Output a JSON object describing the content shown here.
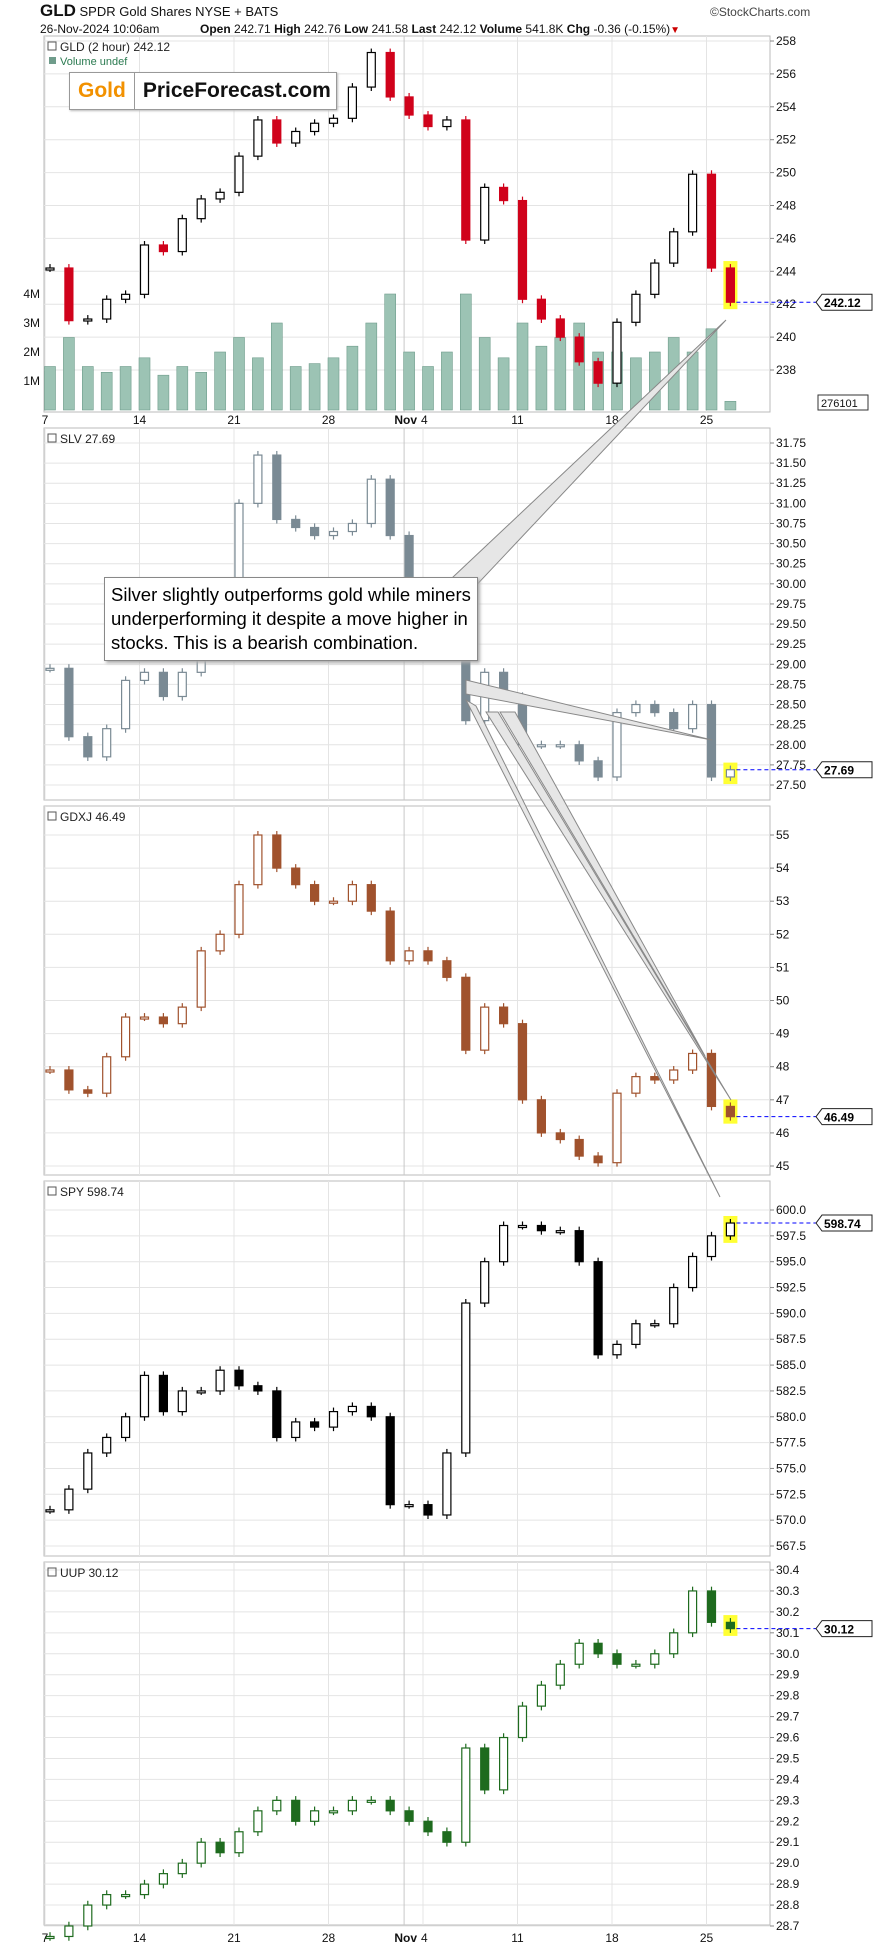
{
  "header": {
    "symbol": "GLD",
    "name": "SPDR Gold Shares NYSE + BATS",
    "copyright": "©StockCharts.com",
    "datetime": "26-Nov-2024 10:06am",
    "open_label": "Open",
    "open": "242.71",
    "high_label": "High",
    "high": "242.76",
    "low_label": "Low",
    "low": "241.58",
    "last_label": "Last",
    "last": "242.12",
    "volume_label": "Volume",
    "volume": "541.8K",
    "chg_label": "Chg",
    "chg": "-0.36 (-0.15%)",
    "chg_icon": "down-triangle-icon"
  },
  "logo": {
    "part1": "Gold",
    "part2": "PriceForecast.com",
    "accent": "#f29100"
  },
  "annotation": "Silver slightly outperforms gold while miners underperforming it despite a move higher in stocks. This is a bearish combination.",
  "chart_data": {
    "type": "candlestick",
    "x_tick_labels": [
      "7",
      "14",
      "21",
      "28",
      "Nov",
      "4",
      "11",
      "18",
      "25"
    ],
    "dates": [
      "2024-10-07",
      "2024-10-08",
      "2024-10-09",
      "2024-10-10",
      "2024-10-11",
      "2024-10-14",
      "2024-10-15",
      "2024-10-16",
      "2024-10-17",
      "2024-10-18",
      "2024-10-21",
      "2024-10-22",
      "2024-10-23",
      "2024-10-24",
      "2024-10-25",
      "2024-10-28",
      "2024-10-29",
      "2024-10-30",
      "2024-10-31",
      "2024-11-01",
      "2024-11-04",
      "2024-11-05",
      "2024-11-06",
      "2024-11-07",
      "2024-11-08",
      "2024-11-11",
      "2024-11-12",
      "2024-11-13",
      "2024-11-14",
      "2024-11-15",
      "2024-11-18",
      "2024-11-19",
      "2024-11-20",
      "2024-11-21",
      "2024-11-22",
      "2024-11-25",
      "2024-11-26"
    ],
    "grid": true,
    "last_marker_color": "#0000ff",
    "highlight_color": "#ffff33",
    "panels": [
      {
        "id": "gld",
        "legend": "GLD (2 hour) 242.12",
        "volume_legend": "Volume undef",
        "last_label": "242.12",
        "color_up": "#000000",
        "color_down": "#d0021b",
        "ylim": [
          237,
          258.5
        ],
        "yticks": [
          258,
          256,
          254,
          252,
          250,
          248,
          246,
          244,
          242,
          240,
          238
        ],
        "close": [
          244.2,
          241.0,
          241.1,
          242.3,
          242.6,
          245.6,
          245.2,
          247.2,
          248.4,
          248.8,
          251.0,
          253.2,
          251.8,
          252.5,
          253.0,
          253.3,
          255.2,
          257.3,
          254.6,
          253.5,
          252.8,
          253.2,
          245.9,
          249.1,
          248.3,
          242.3,
          241.1,
          240.0,
          238.5,
          237.2,
          240.9,
          242.6,
          244.5,
          246.4,
          249.9,
          244.2,
          242.12
        ],
        "volume_ticks": [
          "4M",
          "3M",
          "2M",
          "1M"
        ],
        "volume_tick_values": [
          4,
          3,
          2,
          1
        ],
        "volume_last_label": "276101",
        "volume_color": "#9cc3b4",
        "volume_millions": [
          1.5,
          2.5,
          1.5,
          1.3,
          1.5,
          1.8,
          1.2,
          1.5,
          1.3,
          2.0,
          2.5,
          1.8,
          3.0,
          1.5,
          1.6,
          1.8,
          2.2,
          3.0,
          4.0,
          2.0,
          1.5,
          2.0,
          4.0,
          2.5,
          1.8,
          3.0,
          2.2,
          2.5,
          3.0,
          2.0,
          2.0,
          1.8,
          2.0,
          2.5,
          2.0,
          2.8,
          0.3
        ]
      },
      {
        "id": "slv",
        "legend": "SLV 27.69",
        "last_label": "27.69",
        "color_up": "#7a8a94",
        "color_down": "#7a8a94",
        "ylim": [
          27.4,
          31.85
        ],
        "yticks": [
          31.75,
          31.5,
          31.25,
          31.0,
          30.75,
          30.5,
          30.25,
          30.0,
          29.75,
          29.5,
          29.25,
          29.0,
          28.75,
          28.5,
          28.25,
          28.0,
          27.75,
          27.5
        ],
        "ytick_labels": [
          "31.75",
          "31.50",
          "31.25",
          "31.00",
          "30.75",
          "30.50",
          "30.25",
          "30.00",
          "29.75",
          "29.50",
          "29.25",
          "29.00",
          "28.75",
          "28.50",
          "28.25",
          "28.00",
          "27.75",
          "27.50"
        ],
        "close": [
          28.95,
          28.1,
          27.85,
          28.2,
          28.8,
          28.9,
          28.6,
          28.9,
          29.3,
          30.0,
          31.0,
          31.6,
          30.8,
          30.7,
          30.6,
          30.65,
          30.75,
          31.3,
          30.6,
          30.0,
          29.7,
          29.7,
          28.3,
          28.9,
          28.6,
          28.0,
          28.0,
          28.0,
          27.8,
          27.6,
          28.4,
          28.5,
          28.4,
          28.2,
          28.5,
          27.6,
          27.69
        ]
      },
      {
        "id": "gdxj",
        "legend": "GDXJ 46.49",
        "last_label": "46.49",
        "color_up": "#a0522d",
        "color_down": "#a0522d",
        "ylim": [
          44.7,
          55.7
        ],
        "yticks": [
          55,
          54,
          53,
          52,
          51,
          50,
          49,
          48,
          47,
          46,
          45
        ],
        "close": [
          47.9,
          47.3,
          47.2,
          48.3,
          49.5,
          49.5,
          49.3,
          49.8,
          51.5,
          52.0,
          53.5,
          55.0,
          54.0,
          53.5,
          53.0,
          53.0,
          53.5,
          52.7,
          51.2,
          51.5,
          51.2,
          50.7,
          48.5,
          49.8,
          49.3,
          47.0,
          46.0,
          45.8,
          45.3,
          45.1,
          47.2,
          47.7,
          47.6,
          47.9,
          48.4,
          46.8,
          46.49
        ]
      },
      {
        "id": "spy",
        "legend": "SPY 598.74",
        "last_label": "598.74",
        "color_up": "#000000",
        "color_down": "#000000",
        "ylim": [
          566,
          602
        ],
        "yticks": [
          600,
          597.5,
          595,
          592.5,
          590,
          587.5,
          585,
          582.5,
          580,
          577.5,
          575,
          572.5,
          570,
          567.5
        ],
        "ytick_labels": [
          "600.0",
          "597.5",
          "595.0",
          "592.5",
          "590.0",
          "587.5",
          "585.0",
          "582.5",
          "580.0",
          "577.5",
          "575.0",
          "572.5",
          "570.0",
          "567.5"
        ],
        "close": [
          571.0,
          573.0,
          576.5,
          578.0,
          580.0,
          584.0,
          580.5,
          582.5,
          582.5,
          584.5,
          583.0,
          582.5,
          578.0,
          579.5,
          579.0,
          580.5,
          581.0,
          580.0,
          571.5,
          571.5,
          570.5,
          576.5,
          591.0,
          595.0,
          598.5,
          598.5,
          598.0,
          598.0,
          595.0,
          586.0,
          587.0,
          589.0,
          589.0,
          592.5,
          595.5,
          597.5,
          598.74
        ]
      },
      {
        "id": "uup",
        "legend": "UUP 30.12",
        "last_label": "30.12",
        "color_up": "#1e6b1e",
        "color_down": "#1e6b1e",
        "ylim": [
          28.65,
          30.45
        ],
        "yticks": [
          30.4,
          30.3,
          30.2,
          30.1,
          30.0,
          29.9,
          29.8,
          29.7,
          29.6,
          29.5,
          29.4,
          29.3,
          29.2,
          29.1,
          29.0,
          28.9,
          28.8,
          28.7
        ],
        "ytick_labels": [
          "30.4",
          "30.3",
          "30.2",
          "30.1",
          "30.0",
          "29.9",
          "29.8",
          "29.7",
          "29.6",
          "29.5",
          "29.4",
          "29.3",
          "29.2",
          "29.1",
          "29.0",
          "28.9",
          "28.8",
          "28.7"
        ],
        "close": [
          28.65,
          28.7,
          28.8,
          28.85,
          28.85,
          28.9,
          28.95,
          29.0,
          29.1,
          29.05,
          29.15,
          29.25,
          29.3,
          29.2,
          29.25,
          29.25,
          29.3,
          29.3,
          29.25,
          29.2,
          29.15,
          29.1,
          29.55,
          29.35,
          29.6,
          29.75,
          29.85,
          29.95,
          30.05,
          30.0,
          29.95,
          29.95,
          30.0,
          30.1,
          30.3,
          30.15,
          30.12
        ]
      }
    ]
  }
}
